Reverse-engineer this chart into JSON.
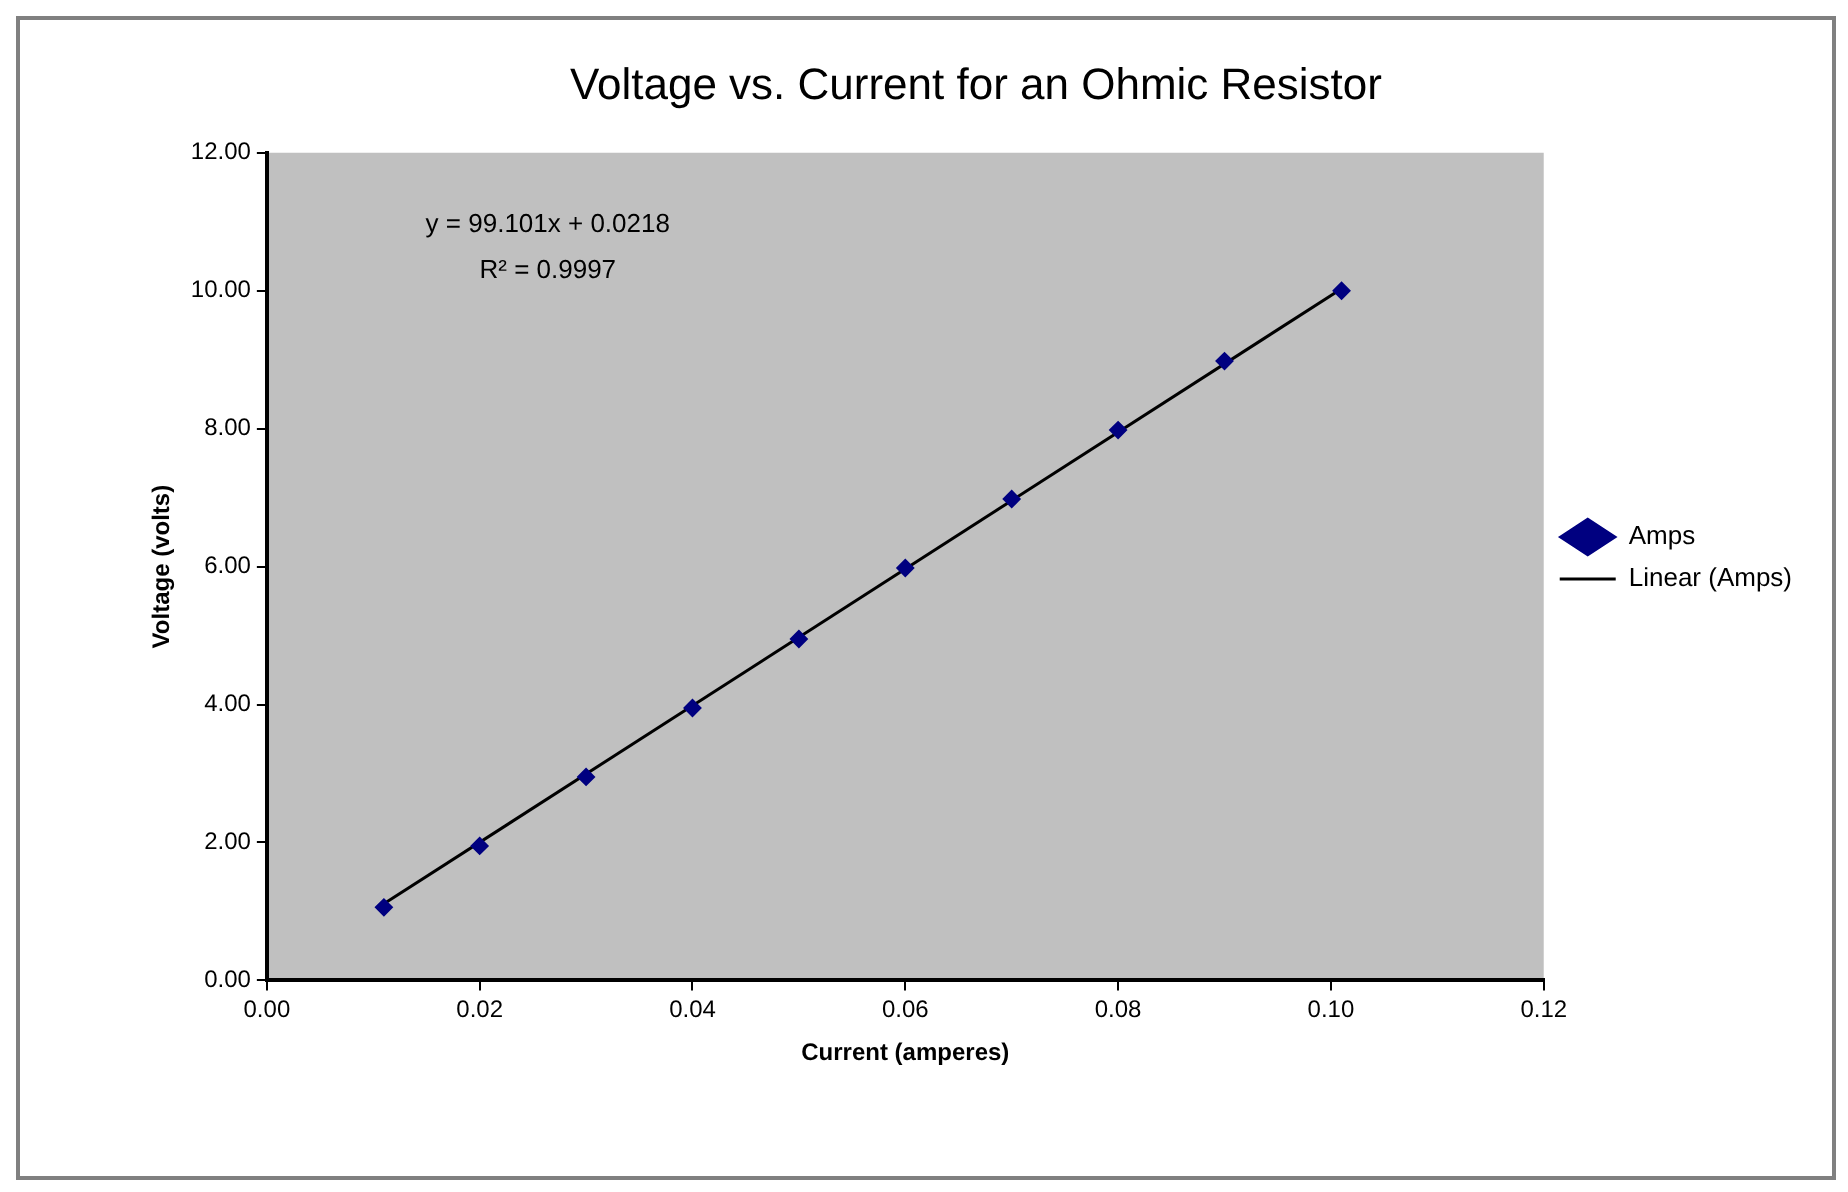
{
  "chart_data": {
    "type": "scatter",
    "title": "Voltage vs. Current for an Ohmic Resistor",
    "xlabel": "Current (amperes)",
    "ylabel": "Voltage (volts)",
    "x": [
      0.011,
      0.02,
      0.03,
      0.04,
      0.05,
      0.06,
      0.07,
      0.08,
      0.09,
      0.101
    ],
    "series": [
      {
        "name": "Amps",
        "type": "scatter",
        "color": "#000080",
        "marker": "diamond",
        "values": [
          1.06,
          1.95,
          2.95,
          3.95,
          4.95,
          5.98,
          6.98,
          7.98,
          8.98,
          10.0
        ]
      },
      {
        "name": "Linear (Amps)",
        "type": "line",
        "color": "#000000",
        "marker": "none",
        "x": [
          0.011,
          0.101
        ],
        "values": [
          1.11,
          10.03
        ]
      }
    ],
    "xlim": [
      0,
      0.12
    ],
    "xticks": [
      {
        "value": 0,
        "label": "0.00"
      },
      {
        "value": 0.02,
        "label": "0.02"
      },
      {
        "value": 0.04,
        "label": "0.04"
      },
      {
        "value": 0.06,
        "label": "0.06"
      },
      {
        "value": 0.08,
        "label": "0.08"
      },
      {
        "value": 0.1,
        "label": "0.10"
      },
      {
        "value": 0.12,
        "label": "0.12"
      }
    ],
    "ylim": [
      0,
      12
    ],
    "yticks": [
      {
        "value": 0,
        "label": "0.00"
      },
      {
        "value": 2,
        "label": "2.00"
      },
      {
        "value": 4,
        "label": "4.00"
      },
      {
        "value": 6,
        "label": "6.00"
      },
      {
        "value": 8,
        "label": "8.00"
      },
      {
        "value": 10,
        "label": "10.00"
      },
      {
        "value": 12,
        "label": "12.00"
      }
    ],
    "annotations": [
      "y = 99.101x + 0.0218",
      "R² = 0.9997"
    ],
    "grid": false,
    "legend": "right"
  }
}
